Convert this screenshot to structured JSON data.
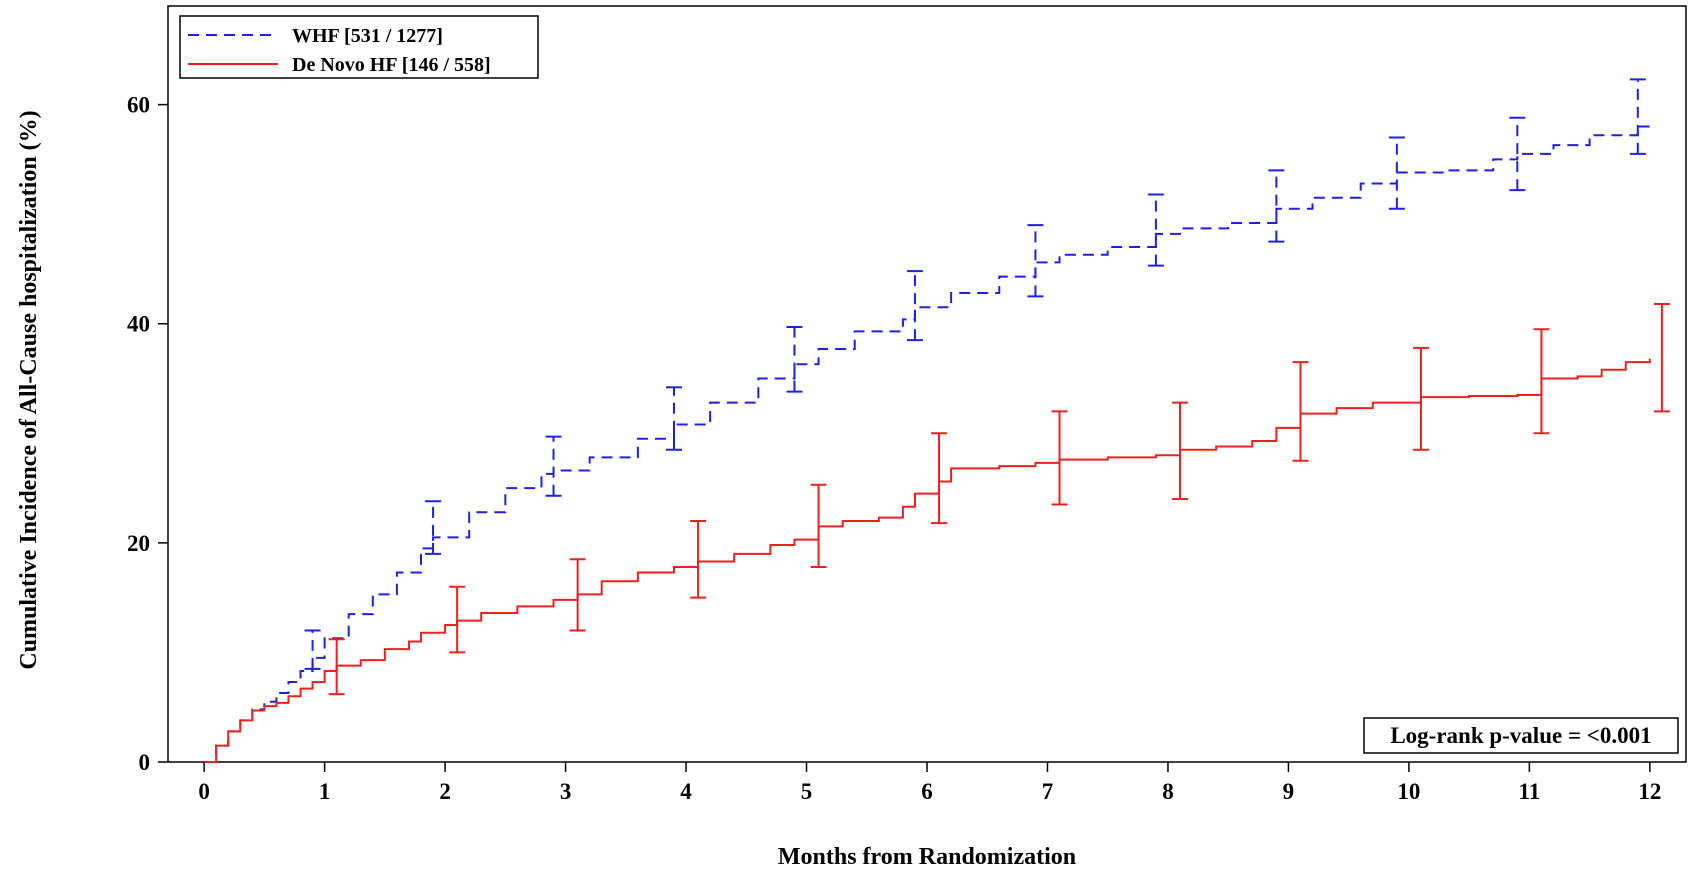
{
  "chart_data": {
    "type": "line",
    "title": "",
    "xlabel": "Months from Randomization",
    "ylabel": "Cumulative Incidence of All-Cause hospitalization (%)",
    "xlim": [
      -0.3,
      12.3
    ],
    "ylim": [
      0,
      69
    ],
    "xticks": [
      0,
      1,
      2,
      3,
      4,
      5,
      6,
      7,
      8,
      9,
      10,
      11,
      12
    ],
    "yticks": [
      0,
      20,
      40,
      60
    ],
    "grid": false,
    "legend_position": "top-left",
    "annotation": "Log-rank p-value = <0.001",
    "series": [
      {
        "name": "WHF [531 / 1277]",
        "color": "#2020e0",
        "style": "dashed",
        "x": [
          0,
          0.1,
          0.2,
          0.3,
          0.4,
          0.5,
          0.6,
          0.7,
          0.8,
          0.9,
          1.0,
          1.2,
          1.4,
          1.6,
          1.8,
          1.9,
          2.2,
          2.5,
          2.8,
          2.9,
          3.2,
          3.6,
          3.9,
          4.2,
          4.6,
          4.9,
          5.1,
          5.4,
          5.8,
          5.9,
          6.2,
          6.6,
          6.9,
          7.1,
          7.5,
          7.9,
          8.1,
          8.5,
          8.9,
          9.2,
          9.6,
          9.9,
          10.3,
          10.7,
          10.9,
          11.2,
          11.5,
          11.9,
          12.0
        ],
        "y": [
          0,
          1.5,
          2.8,
          3.8,
          4.8,
          5.5,
          6.3,
          7.3,
          8.3,
          9.5,
          11.3,
          13.5,
          15.3,
          17.3,
          19.5,
          20.5,
          22.8,
          25.0,
          26.3,
          26.6,
          27.8,
          29.5,
          30.8,
          32.8,
          35.0,
          36.3,
          37.7,
          39.3,
          40.4,
          41.5,
          42.8,
          44.3,
          45.6,
          46.3,
          47.0,
          48.2,
          48.7,
          49.2,
          50.5,
          51.5,
          52.8,
          53.8,
          54.0,
          55.0,
          55.5,
          56.3,
          57.2,
          58.0,
          58.5
        ],
        "error_bars": [
          {
            "x": 0.9,
            "lower": 8.5,
            "upper": 12.0
          },
          {
            "x": 1.9,
            "lower": 19.0,
            "upper": 23.8
          },
          {
            "x": 2.9,
            "lower": 24.3,
            "upper": 29.7
          },
          {
            "x": 3.9,
            "lower": 28.5,
            "upper": 34.2
          },
          {
            "x": 4.9,
            "lower": 33.8,
            "upper": 39.7
          },
          {
            "x": 5.9,
            "lower": 38.5,
            "upper": 44.8
          },
          {
            "x": 6.9,
            "lower": 42.5,
            "upper": 49.0
          },
          {
            "x": 7.9,
            "lower": 45.3,
            "upper": 51.8
          },
          {
            "x": 8.9,
            "lower": 47.5,
            "upper": 54.0
          },
          {
            "x": 9.9,
            "lower": 50.5,
            "upper": 57.0
          },
          {
            "x": 10.9,
            "lower": 52.2,
            "upper": 58.8
          },
          {
            "x": 11.9,
            "lower": 55.5,
            "upper": 62.3
          }
        ]
      },
      {
        "name": "De Novo HF [146 / 558]",
        "color": "#ee2020",
        "style": "solid",
        "x": [
          0,
          0.1,
          0.2,
          0.3,
          0.4,
          0.5,
          0.6,
          0.7,
          0.8,
          0.9,
          1.0,
          1.1,
          1.3,
          1.5,
          1.7,
          1.8,
          2.0,
          2.1,
          2.3,
          2.6,
          2.9,
          3.1,
          3.3,
          3.6,
          3.9,
          4.1,
          4.4,
          4.7,
          4.9,
          5.1,
          5.3,
          5.6,
          5.8,
          5.9,
          6.1,
          6.2,
          6.6,
          6.9,
          7.1,
          7.5,
          7.9,
          8.1,
          8.4,
          8.7,
          8.9,
          9.1,
          9.4,
          9.7,
          10.1,
          10.5,
          10.9,
          11.1,
          11.4,
          11.6,
          11.8,
          12.0
        ],
        "y": [
          0,
          1.5,
          2.8,
          3.8,
          4.7,
          5.1,
          5.4,
          6.0,
          6.7,
          7.3,
          8.3,
          8.8,
          9.3,
          10.3,
          11.0,
          11.8,
          12.5,
          12.9,
          13.6,
          14.2,
          14.8,
          15.3,
          16.5,
          17.3,
          17.8,
          18.3,
          19.0,
          19.8,
          20.3,
          21.5,
          22.0,
          22.3,
          23.3,
          24.5,
          25.6,
          26.8,
          27.0,
          27.3,
          27.6,
          27.8,
          28.0,
          28.5,
          28.8,
          29.3,
          30.5,
          31.8,
          32.3,
          32.8,
          33.3,
          33.4,
          33.5,
          35.0,
          35.2,
          35.8,
          36.5,
          36.8
        ],
        "error_bars": [
          {
            "x": 1.1,
            "lower": 6.2,
            "upper": 11.2
          },
          {
            "x": 2.1,
            "lower": 10.0,
            "upper": 16.0
          },
          {
            "x": 3.1,
            "lower": 12.0,
            "upper": 18.5
          },
          {
            "x": 4.1,
            "lower": 15.0,
            "upper": 22.0
          },
          {
            "x": 5.1,
            "lower": 17.8,
            "upper": 25.3
          },
          {
            "x": 6.1,
            "lower": 21.8,
            "upper": 30.0
          },
          {
            "x": 7.1,
            "lower": 23.5,
            "upper": 32.0
          },
          {
            "x": 8.1,
            "lower": 24.0,
            "upper": 32.8
          },
          {
            "x": 9.1,
            "lower": 27.5,
            "upper": 36.5
          },
          {
            "x": 10.1,
            "lower": 28.5,
            "upper": 37.8
          },
          {
            "x": 11.1,
            "lower": 30.0,
            "upper": 39.5
          },
          {
            "x": 12.1,
            "lower": 32.0,
            "upper": 41.8
          }
        ]
      }
    ]
  }
}
